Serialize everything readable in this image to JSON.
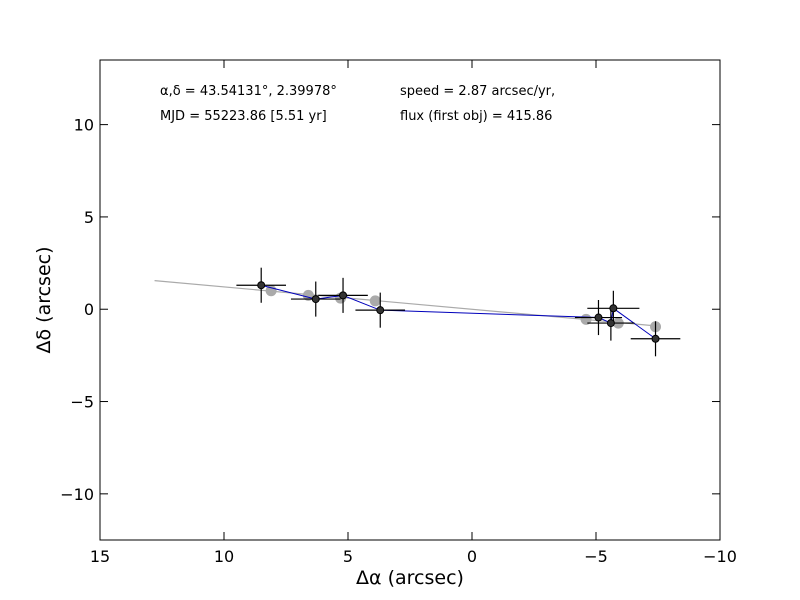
{
  "chart_data": {
    "type": "scatter",
    "title": "",
    "xlabel": "Δα (arcsec)",
    "ylabel": "Δδ (arcsec)",
    "xlim": [
      15,
      -10
    ],
    "ylim": [
      -12.5,
      13.5
    ],
    "x_ticks": [
      15,
      10,
      5,
      0,
      -5,
      -10
    ],
    "x_tick_labels": [
      "15",
      "10",
      "5",
      "0",
      "−5",
      "−10"
    ],
    "y_ticks": [
      10,
      5,
      0,
      -5,
      -10
    ],
    "y_tick_labels": [
      "10",
      "5",
      "0",
      "−5",
      "−10"
    ],
    "grid": false,
    "annotations": {
      "coords": "α,δ = 43.54131°, 2.39978°",
      "mjd": "MJD = 55223.86 [5.51 yr]",
      "speed": "speed = 2.87 arcsec/yr,",
      "flux": "flux (first obj) = 415.86"
    },
    "fit_line": {
      "color": "#aaaaaa",
      "x": [
        12.8,
        -7.4
      ],
      "y": [
        1.55,
        -0.9
      ]
    },
    "model_points": {
      "color": "#aaaaaa",
      "x": [
        8.1,
        6.6,
        5.3,
        3.9,
        -4.6,
        -5.9,
        -7.4
      ],
      "y": [
        1.0,
        0.75,
        0.6,
        0.45,
        -0.55,
        -0.75,
        -0.95
      ]
    },
    "observed": {
      "color": "#000000",
      "line_color": "#0000bb",
      "x": [
        8.5,
        6.3,
        5.2,
        3.7,
        -5.1,
        -5.6,
        -5.7,
        -7.4
      ],
      "y": [
        1.3,
        0.55,
        0.75,
        -0.05,
        -0.45,
        -0.75,
        0.05,
        -1.6
      ],
      "x_err": [
        1.0,
        1.0,
        1.0,
        1.0,
        0.95,
        0.95,
        1.05,
        1.0
      ],
      "y_err": [
        0.95,
        0.95,
        0.95,
        0.95,
        0.95,
        0.95,
        0.95,
        0.95
      ]
    }
  }
}
